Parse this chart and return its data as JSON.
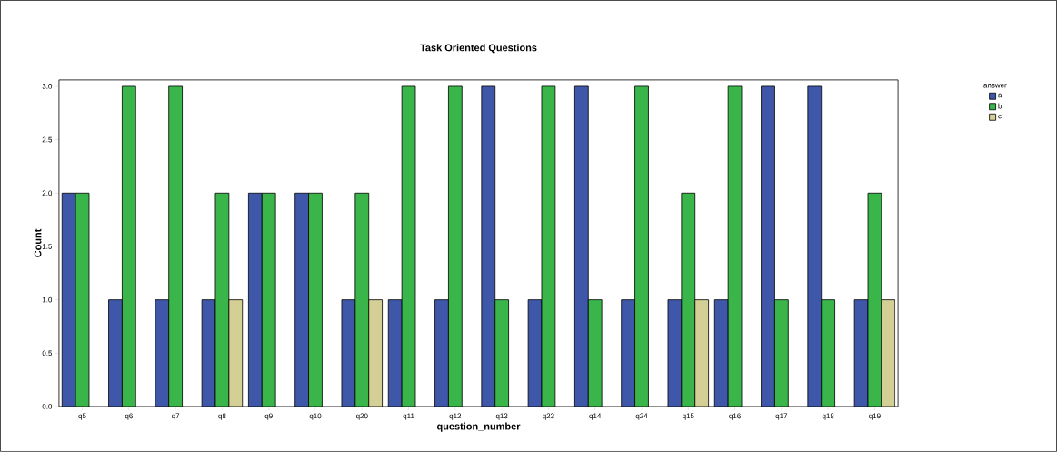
{
  "chart_data": {
    "type": "bar",
    "title": "Task Oriented Questions",
    "xlabel": "question_number",
    "ylabel": "Count",
    "legend_title": "answer",
    "categories": [
      "q5",
      "q6",
      "q7",
      "q8",
      "q9",
      "q10",
      "q20",
      "q11",
      "q12",
      "q13",
      "q23",
      "q14",
      "q24",
      "q15",
      "q16",
      "q17",
      "q18",
      "q19"
    ],
    "series": [
      {
        "name": "a",
        "color": "#3f57a8",
        "values": [
          2,
          1,
          1,
          1,
          2,
          2,
          1,
          1,
          1,
          3,
          1,
          3,
          1,
          1,
          1,
          3,
          3,
          1
        ]
      },
      {
        "name": "b",
        "color": "#39b54a",
        "values": [
          2,
          3,
          3,
          2,
          2,
          2,
          2,
          3,
          3,
          1,
          3,
          1,
          3,
          2,
          3,
          1,
          1,
          2
        ]
      },
      {
        "name": "c",
        "color": "#d4cf95",
        "values": [
          null,
          null,
          null,
          1,
          null,
          null,
          1,
          null,
          null,
          null,
          null,
          null,
          null,
          1,
          null,
          null,
          null,
          1
        ]
      }
    ],
    "ylim": [
      0,
      3.06
    ],
    "yticks": [
      {
        "value": 0,
        "label": "0.0"
      },
      {
        "value": 0.5,
        "label": "0.5"
      },
      {
        "value": 1,
        "label": "1.0"
      },
      {
        "value": 1.5,
        "label": "1.5"
      },
      {
        "value": 2,
        "label": "2.0"
      },
      {
        "value": 2.5,
        "label": "2.5"
      },
      {
        "value": 3,
        "label": "3.0"
      }
    ],
    "grid": false,
    "legend": "top right"
  }
}
